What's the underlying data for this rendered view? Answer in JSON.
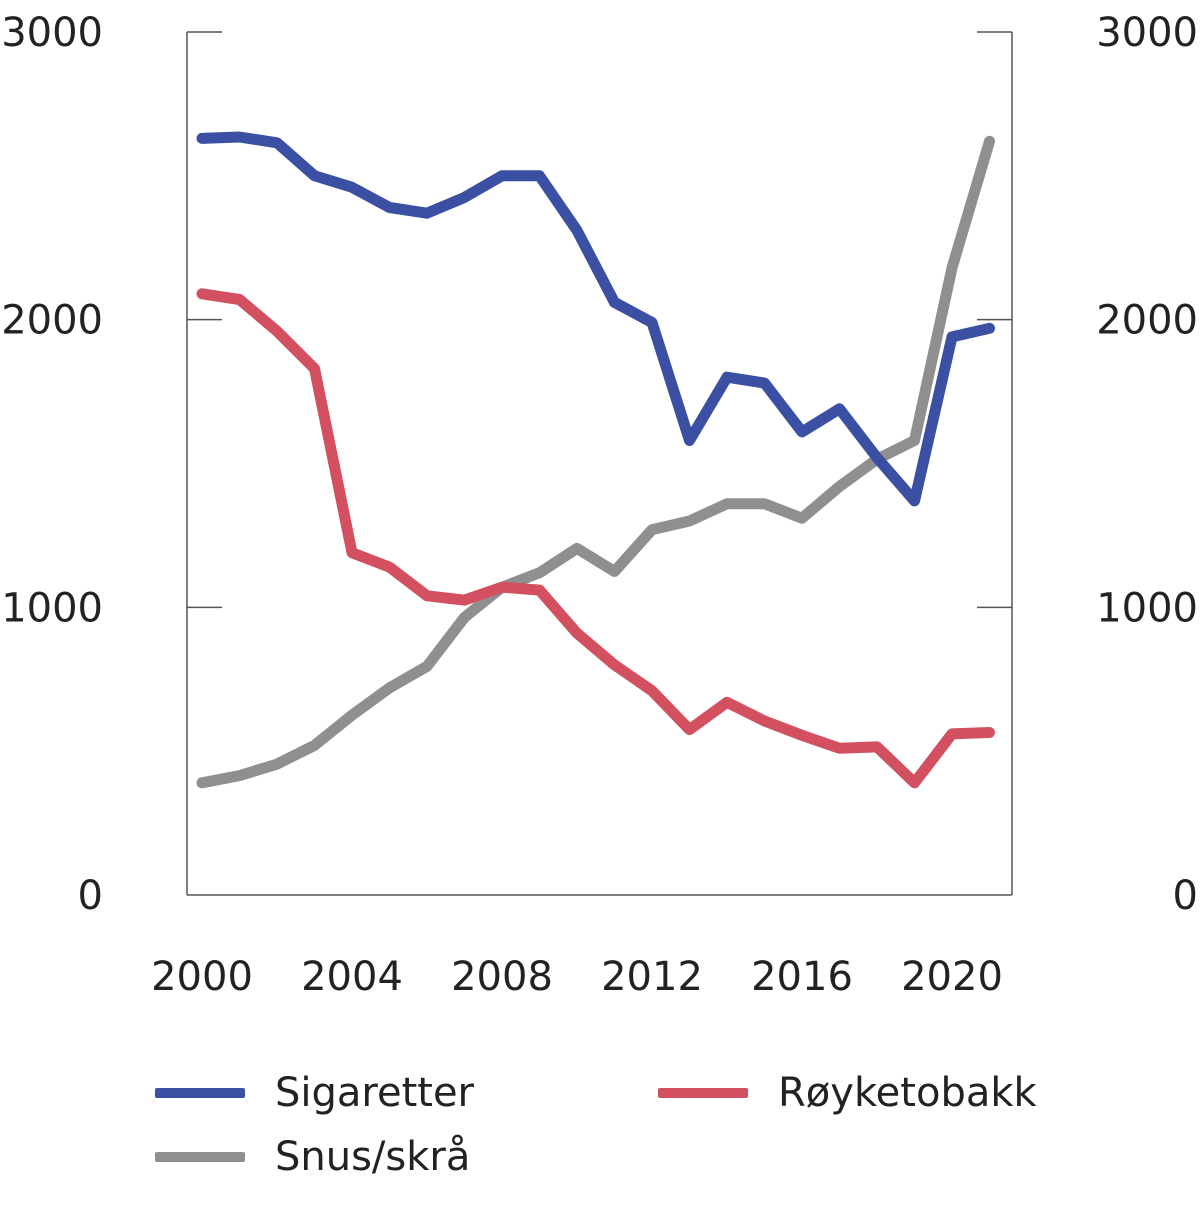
{
  "chart_data": {
    "type": "line",
    "x": [
      2000,
      2001,
      2002,
      2003,
      2004,
      2005,
      2006,
      2007,
      2008,
      2009,
      2010,
      2011,
      2012,
      2013,
      2014,
      2015,
      2016,
      2017,
      2018,
      2019,
      2020,
      2021
    ],
    "x_ticks": [
      "2000",
      "2004",
      "2008",
      "2012",
      "2016",
      "2020"
    ],
    "xlim": [
      1999.6,
      2021.6
    ],
    "y_ticks": [
      "0",
      "1000",
      "2000",
      "3000"
    ],
    "ylim": [
      0,
      3000
    ],
    "y_right_ticks": [
      "0",
      "1000",
      "2000",
      "3000"
    ],
    "grid": false,
    "legend_position": "bottom",
    "series": [
      {
        "name": "Sigaretter",
        "color": "#3b4fa3",
        "values": [
          2630,
          2635,
          2615,
          2500,
          2460,
          2390,
          2370,
          2425,
          2500,
          2500,
          2310,
          2060,
          1990,
          1580,
          1800,
          1780,
          1610,
          1690,
          1520,
          1370,
          1940,
          1970
        ]
      },
      {
        "name": "Røyketobakk",
        "color": "#d2505f",
        "values": [
          2090,
          2070,
          1960,
          1830,
          1190,
          1140,
          1040,
          1025,
          1070,
          1060,
          910,
          800,
          710,
          575,
          670,
          605,
          555,
          510,
          515,
          390,
          560,
          565
        ]
      },
      {
        "name": "Snus/skrå",
        "color": "#8f8f8f",
        "values": [
          390,
          415,
          455,
          520,
          625,
          720,
          795,
          965,
          1070,
          1120,
          1205,
          1125,
          1270,
          1300,
          1360,
          1360,
          1310,
          1420,
          1515,
          1580,
          2180,
          2620
        ]
      }
    ]
  },
  "legend": {
    "items": [
      {
        "label": "Sigaretter",
        "color": "#3b4fa3"
      },
      {
        "label": "Røyketobakk",
        "color": "#d2505f"
      },
      {
        "label": "Snus/skrå",
        "color": "#8f8f8f"
      }
    ]
  }
}
